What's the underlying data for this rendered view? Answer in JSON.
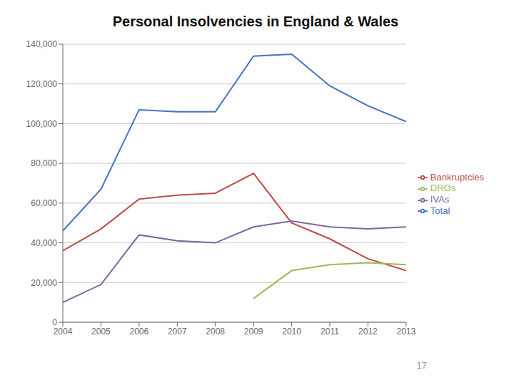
{
  "chart_data": {
    "type": "line",
    "title": "Personal Insolvencies in England & Wales",
    "x": [
      2004,
      2005,
      2006,
      2007,
      2008,
      2009,
      2010,
      2011,
      2012,
      2013
    ],
    "xlim": [
      2004,
      2013
    ],
    "xticks": [
      2004,
      2005,
      2006,
      2007,
      2008,
      2009,
      2010,
      2011,
      2012,
      2013
    ],
    "ylim": [
      0,
      140000
    ],
    "yticks": [
      0,
      {
        "value": 20000,
        "label": "20,000"
      },
      {
        "value": 40000,
        "label": "40,000"
      },
      {
        "value": 60000,
        "label": "60,000"
      },
      {
        "value": 80000,
        "label": "80,000"
      },
      {
        "value": 100000,
        "label": "100,000"
      },
      {
        "value": 120000,
        "label": "120,000"
      },
      {
        "value": 140000,
        "label": "140,000"
      }
    ],
    "grid": true,
    "legend": "right",
    "series": [
      {
        "name": "Total",
        "color": "#4472C4",
        "values": [
          46000,
          67000,
          107000,
          106000,
          106000,
          134000,
          135000,
          119000,
          109000,
          101000
        ]
      },
      {
        "name": "Bankruptcies",
        "color": "#BE4B48",
        "values": [
          36000,
          47000,
          62000,
          64000,
          65000,
          75000,
          50000,
          42000,
          32000,
          26000
        ]
      },
      {
        "name": "DROs",
        "color": "#9BBB59",
        "values": [
          null,
          null,
          null,
          null,
          null,
          12000,
          26000,
          29000,
          30000,
          29000
        ]
      },
      {
        "name": "IVAs",
        "color": "#8064A2",
        "values": [
          10000,
          19000,
          44000,
          41000,
          40000,
          48000,
          51000,
          48000,
          47000,
          48000
        ]
      }
    ],
    "annotations": [
      "17"
    ]
  }
}
